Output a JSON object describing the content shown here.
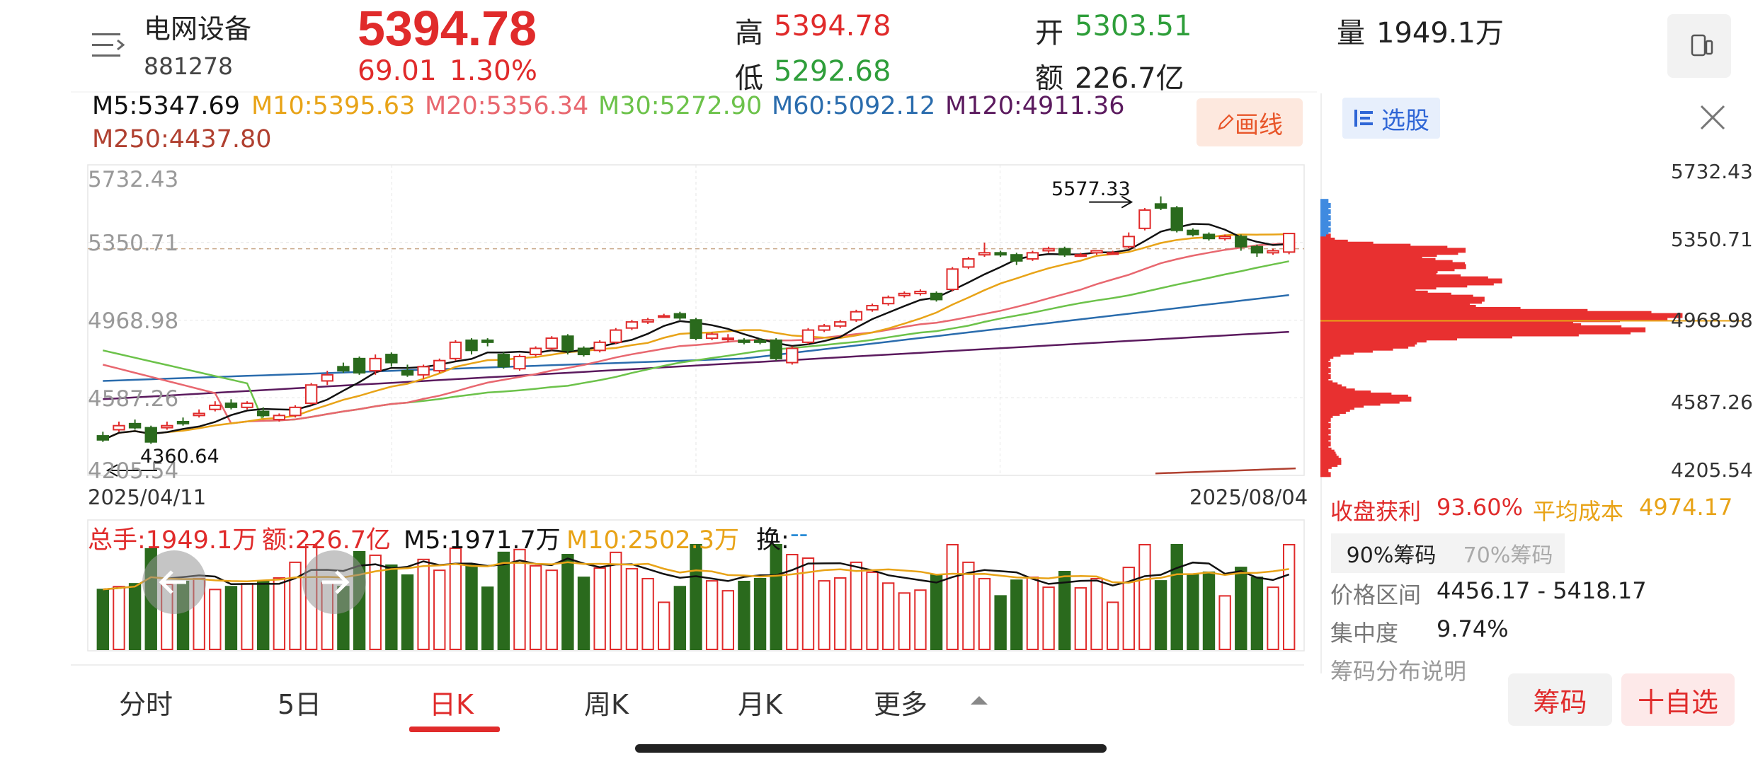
{
  "header": {
    "title": "电网设备",
    "code": "881278",
    "price": "5394.78",
    "change": "69.01",
    "change_pct": "1.30%",
    "high_label": "高",
    "high": "5394.78",
    "low_label": "低",
    "low": "5292.68",
    "open_label": "开",
    "open": "5303.51",
    "amount_label": "额",
    "amount": "226.7亿",
    "volume_label": "量",
    "volume": "1949.1万"
  },
  "ma": {
    "m5": "M5:5347.69",
    "m10": "M10:5395.63",
    "m20": "M20:5356.34",
    "m30": "M30:5272.90",
    "m60": "M60:5092.12",
    "m120": "M120:4911.36",
    "m250": "M250:4437.80"
  },
  "draw_button": "画线",
  "chart": {
    "y_ticks": [
      "5732.43",
      "5350.71",
      "4968.98",
      "4587.26",
      "4205.54"
    ],
    "max_label": "5577.33",
    "min_label": "4360.64",
    "start_date": "2025/04/11",
    "end_date": "2025/08/04"
  },
  "volume": {
    "total": "总手:1949.1万",
    "amount": "额:226.7亿",
    "m5": "M5:1971.7万",
    "m10": "M10:2502.3万",
    "turnover_label": "换:",
    "turnover_value": "--"
  },
  "tabs": [
    "分时",
    "5日",
    "日K",
    "周K",
    "月K",
    "更多"
  ],
  "active_tab": "日K",
  "right": {
    "select_label": "选股",
    "price_ticks": [
      "5732.43",
      "5350.71",
      "4968.98",
      "4587.26",
      "4205.54"
    ],
    "profit_label": "收盘获利",
    "profit_value": "93.60%",
    "avgcost_label": "平均成本",
    "avgcost_value": "4974.17",
    "chip_tab_90": "90%筹码",
    "chip_tab_70": "70%筹码",
    "range_label": "价格区间",
    "range_value": "4456.17 - 5418.17",
    "conc_label": "集中度",
    "conc_value": "9.74%",
    "note": "筹码分布说明"
  },
  "buttons": {
    "chips": "筹码",
    "add": "十自选"
  },
  "colors": {
    "up": "#e02b2b",
    "down": "#2e9e3a",
    "candle_down_fill": "#2a6a1d",
    "m5": "#111111",
    "m10": "#e8a317",
    "m20": "#e8676f",
    "m30": "#6cc24a",
    "m60": "#2a6cad",
    "m120": "#5b1a5e",
    "m250": "#b04030"
  },
  "chart_data": {
    "type": "candlestick",
    "y_range": [
      4205.54,
      5732.43
    ],
    "candles": [
      [
        4400,
        4380,
        4420,
        4370
      ],
      [
        4430,
        4450,
        4470,
        4420
      ],
      [
        4460,
        4440,
        4480,
        4430
      ],
      [
        4440,
        4370,
        4450,
        4360.64
      ],
      [
        4440,
        4450,
        4470,
        4430
      ],
      [
        4470,
        4460,
        4490,
        4450
      ],
      [
        4500,
        4510,
        4530,
        4490
      ],
      [
        4530,
        4550,
        4570,
        4520
      ],
      [
        4560,
        4540,
        4580,
        4530
      ],
      [
        4540,
        4560,
        4570,
        4530
      ],
      [
        4520,
        4500,
        4540,
        4490
      ],
      [
        4480,
        4500,
        4510,
        4470
      ],
      [
        4500,
        4540,
        4550,
        4490
      ],
      [
        4560,
        4650,
        4660,
        4550
      ],
      [
        4670,
        4700,
        4720,
        4650
      ],
      [
        4740,
        4720,
        4760,
        4710
      ],
      [
        4780,
        4710,
        4790,
        4700
      ],
      [
        4720,
        4780,
        4800,
        4700
      ],
      [
        4800,
        4760,
        4810,
        4740
      ],
      [
        4720,
        4700,
        4750,
        4690
      ],
      [
        4700,
        4740,
        4750,
        4680
      ],
      [
        4720,
        4770,
        4780,
        4710
      ],
      [
        4780,
        4860,
        4870,
        4770
      ],
      [
        4870,
        4820,
        4880,
        4800
      ],
      [
        4870,
        4860,
        4880,
        4840
      ],
      [
        4800,
        4740,
        4810,
        4730
      ],
      [
        4730,
        4790,
        4800,
        4720
      ],
      [
        4800,
        4830,
        4840,
        4790
      ],
      [
        4830,
        4880,
        4890,
        4820
      ],
      [
        4890,
        4820,
        4900,
        4800
      ],
      [
        4830,
        4800,
        4840,
        4790
      ],
      [
        4820,
        4860,
        4870,
        4810
      ],
      [
        4860,
        4920,
        4930,
        4850
      ],
      [
        4930,
        4960,
        4970,
        4920
      ],
      [
        4960,
        4970,
        4980,
        4950
      ],
      [
        4990,
        4990,
        5000,
        4980
      ],
      [
        5000,
        4980,
        5010,
        4970
      ],
      [
        4970,
        4880,
        4980,
        4870
      ],
      [
        4880,
        4900,
        4910,
        4870
      ],
      [
        4880,
        4880,
        4900,
        4860
      ],
      [
        4870,
        4860,
        4880,
        4850
      ],
      [
        4870,
        4860,
        4880,
        4850
      ],
      [
        4870,
        4780,
        4880,
        4770
      ],
      [
        4760,
        4830,
        4840,
        4750
      ],
      [
        4860,
        4920,
        4930,
        4850
      ],
      [
        4920,
        4940,
        4950,
        4910
      ],
      [
        4940,
        4960,
        4970,
        4930
      ],
      [
        4970,
        5010,
        5020,
        4960
      ],
      [
        5020,
        5040,
        5050,
        5010
      ],
      [
        5050,
        5080,
        5090,
        5040
      ],
      [
        5090,
        5100,
        5110,
        5080
      ],
      [
        5100,
        5110,
        5120,
        5090
      ],
      [
        5100,
        5070,
        5110,
        5060
      ],
      [
        5120,
        5220,
        5230,
        5110
      ],
      [
        5230,
        5270,
        5280,
        5220
      ],
      [
        5290,
        5300,
        5350,
        5280
      ],
      [
        5300,
        5290,
        5310,
        5280
      ],
      [
        5290,
        5260,
        5300,
        5240
      ],
      [
        5270,
        5300,
        5310,
        5260
      ],
      [
        5310,
        5320,
        5330,
        5300
      ],
      [
        5320,
        5290,
        5330,
        5280
      ],
      [
        5290,
        5290,
        5300,
        5280
      ],
      [
        5300,
        5310,
        5310,
        5290
      ],
      [
        5300,
        5300,
        5310,
        5290
      ],
      [
        5330,
        5380,
        5400,
        5320
      ],
      [
        5420,
        5510,
        5520,
        5410
      ],
      [
        5540,
        5520,
        5577.33,
        5510
      ],
      [
        5520,
        5410,
        5530,
        5400
      ],
      [
        5410,
        5390,
        5420,
        5380
      ],
      [
        5390,
        5370,
        5400,
        5360
      ],
      [
        5370,
        5380,
        5390,
        5360
      ],
      [
        5380,
        5330,
        5390,
        5310
      ],
      [
        5330,
        5300,
        5340,
        5280
      ],
      [
        5300,
        5310,
        5320,
        5290
      ],
      [
        5303.51,
        5394.78,
        5394.78,
        5292.68
      ]
    ]
  }
}
